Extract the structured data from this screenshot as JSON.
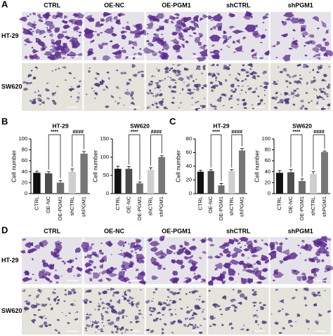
{
  "panel_labels": [
    "A",
    "B",
    "C",
    "D"
  ],
  "image_panels": [
    {
      "columns": [
        "CTRL",
        "OE-NC",
        "OE-PGM1",
        "shCTRL",
        "shPGM1"
      ],
      "rows": [
        "HT-29",
        "SW620"
      ]
    },
    {
      "columns": [
        "CTRL",
        "OE-NC",
        "OE-PGM1",
        "shCTRL",
        "shPGM1"
      ],
      "rows": [
        "HT-29",
        "SW620"
      ]
    }
  ],
  "chart_data": [
    {
      "type": "bar",
      "title": "HT-29",
      "y_label": "Cell number",
      "categories": [
        "CTRL",
        "OE-NC",
        "OE-PGM1",
        "shCTRL",
        "shPGM1"
      ],
      "values": [
        38,
        37,
        20,
        40,
        73
      ],
      "errors": [
        3,
        3,
        4,
        5,
        4
      ],
      "colors": [
        "#111111",
        "#4d4d4d",
        "#6e6e6e",
        "#cfcfcf",
        "#777777"
      ],
      "ylim": [
        0,
        100
      ],
      "yticks": [
        0,
        20,
        40,
        60,
        80,
        100
      ],
      "annotations": [
        {
          "text": "****",
          "between": [
            "OE-NC",
            "OE-PGM1"
          ]
        },
        {
          "text": "####",
          "between": [
            "shCTRL",
            "shPGM1"
          ]
        }
      ]
    },
    {
      "type": "bar",
      "title": "SW620",
      "y_label": "Cell number",
      "categories": [
        "CTRL",
        "OE-NC",
        "OE-PGM1",
        "shCTRL",
        "shPGM1"
      ],
      "values": [
        68,
        68,
        28,
        65,
        100
      ],
      "errors": [
        7,
        6,
        4,
        6,
        4
      ],
      "colors": [
        "#111111",
        "#4d4d4d",
        "#6e6e6e",
        "#cfcfcf",
        "#777777"
      ],
      "ylim": [
        0,
        150
      ],
      "yticks": [
        0,
        50,
        100,
        150
      ],
      "annotations": [
        {
          "text": "****",
          "between": [
            "OE-NC",
            "OE-PGM1"
          ]
        },
        {
          "text": "####",
          "between": [
            "shCTRL",
            "shPGM1"
          ]
        }
      ]
    },
    {
      "type": "bar",
      "title": "HT-29",
      "y_label": "Cell number",
      "categories": [
        "CTRL",
        "OE-NC",
        "OE-PGM1",
        "shCTRL",
        "shPGM1"
      ],
      "values": [
        32,
        33,
        12,
        33,
        63
      ],
      "errors": [
        2,
        2,
        3,
        2,
        3
      ],
      "colors": [
        "#111111",
        "#4d4d4d",
        "#6e6e6e",
        "#cfcfcf",
        "#777777"
      ],
      "ylim": [
        0,
        80
      ],
      "yticks": [
        0,
        20,
        40,
        60,
        80
      ],
      "annotations": [
        {
          "text": "****",
          "between": [
            "OE-NC",
            "OE-PGM1"
          ]
        },
        {
          "text": "####",
          "between": [
            "shCTRL",
            "shPGM1"
          ]
        }
      ]
    },
    {
      "type": "bar",
      "title": "SW620",
      "y_label": "Cell number",
      "categories": [
        "CTRL",
        "OE-NC",
        "OE-PGM1",
        "shCTRL",
        "shPGM1"
      ],
      "values": [
        38,
        39,
        23,
        36,
        76
      ],
      "errors": [
        4,
        5,
        4,
        4,
        2
      ],
      "colors": [
        "#111111",
        "#4d4d4d",
        "#6e6e6e",
        "#cfcfcf",
        "#777777"
      ],
      "ylim": [
        0,
        100
      ],
      "yticks": [
        0,
        20,
        40,
        60,
        80,
        100
      ],
      "annotations": [
        {
          "text": "****",
          "between": [
            "OE-NC",
            "OE-PGM1"
          ]
        },
        {
          "text": "####",
          "between": [
            "shCTRL",
            "shPGM1"
          ]
        }
      ]
    }
  ]
}
